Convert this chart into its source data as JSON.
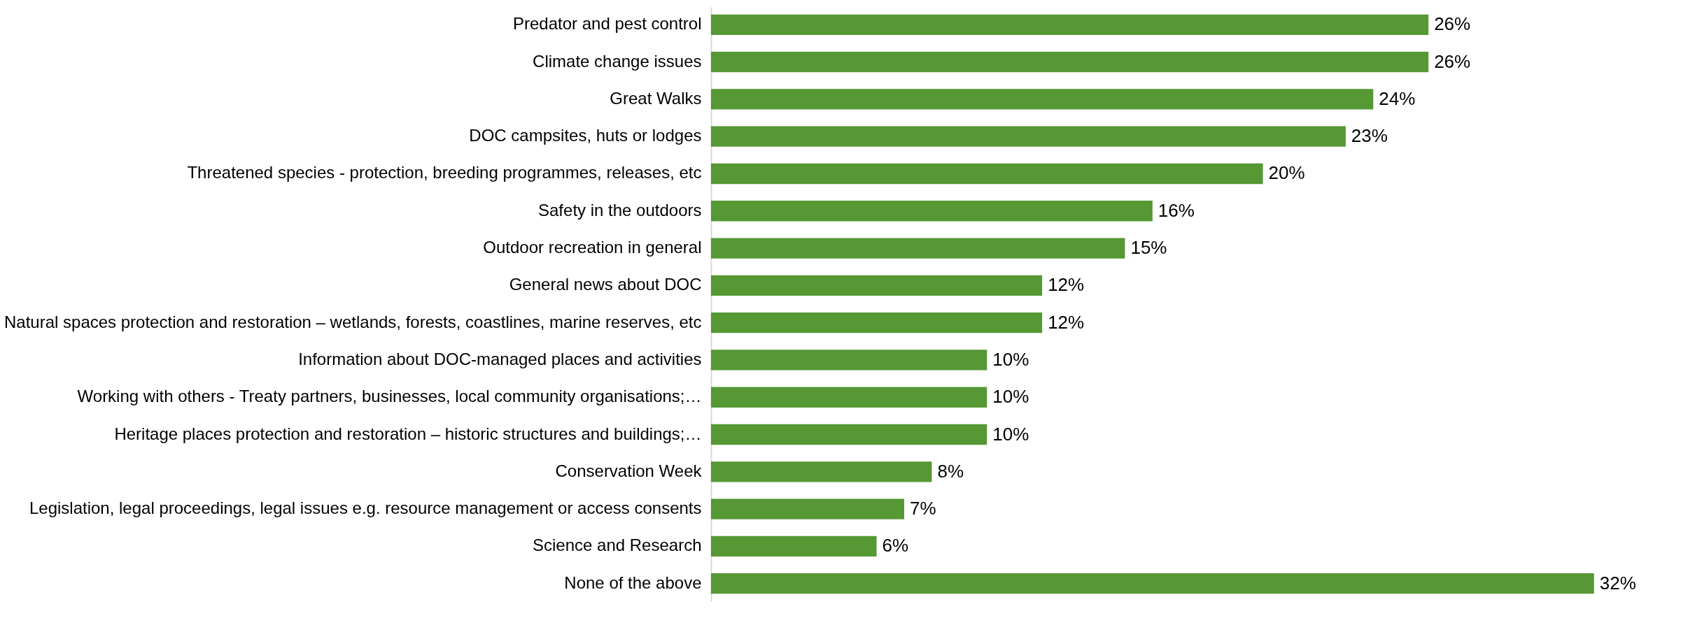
{
  "chart_data": {
    "type": "bar",
    "orientation": "horizontal",
    "categories": [
      "Predator and pest control",
      "Climate change issues",
      "Great Walks",
      "DOC campsites, huts or lodges",
      "Threatened species - protection, breeding programmes, releases, etc",
      "Safety in the outdoors",
      "Outdoor recreation in general",
      "General news about DOC",
      "Natural spaces protection and restoration – wetlands, forests, coastlines, marine reserves, etc",
      "Information about DOC-managed places and activities",
      "Working with others - Treaty partners, businesses, local community organisations;…",
      "Heritage places protection and restoration – historic structures and buildings;…",
      "Conservation Week",
      "Legislation, legal proceedings, legal issues e.g. resource management or access consents",
      "Science and Research",
      "None of the above"
    ],
    "values": [
      26,
      26,
      24,
      23,
      20,
      16,
      15,
      12,
      12,
      10,
      10,
      10,
      8,
      7,
      6,
      32
    ],
    "value_labels": [
      "26%",
      "26%",
      "24%",
      "23%",
      "20%",
      "16%",
      "15%",
      "12%",
      "12%",
      "10%",
      "10%",
      "10%",
      "8%",
      "7%",
      "6%",
      "32%"
    ],
    "color": "#559834",
    "xlim": [
      0,
      35
    ],
    "tick_labels": "y"
  }
}
